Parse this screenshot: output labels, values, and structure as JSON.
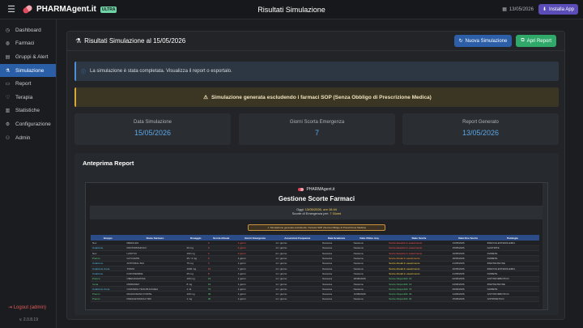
{
  "topbar": {
    "brand": "PHARMAgent.it",
    "badge": "ULTRA",
    "title": "Risultati Simulazione",
    "date": "13/05/2026",
    "install_label": "Installa App"
  },
  "sidebar": {
    "items": [
      {
        "label": "Dashboard",
        "icon": "dashboard-icon",
        "glyph": "◷"
      },
      {
        "label": "Farmaci",
        "icon": "pill-icon",
        "glyph": "◍"
      },
      {
        "label": "Gruppi & Alert",
        "icon": "group-icon",
        "glyph": "▤"
      },
      {
        "label": "Simulazione",
        "icon": "flask-icon",
        "glyph": "⚗"
      },
      {
        "label": "Report",
        "icon": "document-icon",
        "glyph": "▭"
      },
      {
        "label": "Terapia",
        "icon": "heart-icon",
        "glyph": "♡"
      },
      {
        "label": "Statistiche",
        "icon": "chart-icon",
        "glyph": "▥"
      },
      {
        "label": "Configurazione",
        "icon": "gear-icon",
        "glyph": "⚙"
      },
      {
        "label": "Admin",
        "icon": "user-icon",
        "glyph": "⚇"
      }
    ],
    "active_index": 3,
    "logout": "Logout (admin)",
    "version": "v. 2.0.8.19"
  },
  "main": {
    "title": "Risultati Simulazione al 15/05/2026",
    "new_sim_label": "Nuova Simulazione",
    "open_report_label": "Apri Report",
    "info_alert": "La simulazione è stata completata. Visualizza il report o esportalo.",
    "warn_alert": "Simulazione generata escludendo i farmaci SOP (Senza Obbligo di Prescrizione Medica)",
    "stats": [
      {
        "label": "Data Simulazione",
        "value": "15/05/2026"
      },
      {
        "label": "Giorni Scorta Emergenza",
        "value": "7"
      },
      {
        "label": "Report Generato",
        "value": "13/05/2026"
      }
    ],
    "preview_title": "Anteprima Report"
  },
  "report": {
    "brand": "PHARMAgent.it",
    "title": "Gestione Scorte Farmaci",
    "today_label": "Oggi:",
    "today_value": "13/05/2026, ore 16:44",
    "emergency_label": "Scorte di Emergenza per:",
    "emergency_value": "7 Giorni",
    "warning": "Simulazione generata escludendo i farmaci SOP (Senza Obbligo di Prescrizione Medica)",
    "headers": [
      "Gruppo",
      "Nome Farmaco",
      "Dosaggio",
      "Scorta Attuale",
      "Giorni Emergenza",
      "Assunzioni Frequenza",
      "Data Scadenza",
      "Data Ultimo Acq.",
      "Stato Scorta",
      "Data Fine Scorta",
      "Patologia"
    ],
    "rows": [
      {
        "c": [
          "Nov",
          "MEDULES",
          "",
          "0",
          "1 giorni",
          "1x / giorno",
          "Nessuna",
          "Nessuna",
          "Scorte Esaurite In esaurimento",
          "13/05/2026",
          "IPERCOLESTEROLEMIA"
        ],
        "g": "",
        "s": "c-red"
      },
      {
        "c": [
          "Colazione",
          "PANTOPRAZOLO",
          "20 mg",
          "0",
          "2 giorni",
          "1x / giorno",
          "Nessuna",
          "Nessuna",
          "Scorte Esaurite In esaurimento",
          "15/05/2026",
          "GASTRITE"
        ],
        "g": "c-cyan",
        "s": "c-red"
      },
      {
        "c": [
          "Nov",
          "LASITUX",
          "100 mg",
          "3",
          "3 giorni",
          "2x / giorno",
          "Nessuna",
          "Nessuna",
          "Scorte Esaurite In esaurimento",
          "16/05/2026",
          "DIABETE"
        ],
        "g": "",
        "s": "c-red"
      },
      {
        "c": [
          "Pranzo",
          "GLYCAMIN",
          "25 / 3 mg",
          "0",
          "1 giorni",
          "1x / giorno",
          "Nessuna",
          "Nessuna",
          "Scorte Attuali In esaurimento",
          "18/05/2026",
          "DIABETE"
        ],
        "g": "c-green",
        "s": "c-orange"
      },
      {
        "c": [
          "Colazione",
          "ANTIVIRAL B12",
          "75 mg",
          "0",
          "1 giorni",
          "1x / giorno",
          "Nessuna",
          "Nessuna",
          "Scorte Attuali In esaurimento",
          "21/05/2026",
          "IPERTENSIONE"
        ],
        "g": "c-cyan",
        "s": "c-yellow"
      },
      {
        "c": [
          "Colazione Cena",
          "TOKIM",
          "1000 mg",
          "10",
          "7 giorni",
          "1x / giorno",
          "Nessuna",
          "Nessuna",
          "Scorte Attuali In esaurimento",
          "20/05/2026",
          "IPERCOLESTEROLEMIA"
        ],
        "g": "c-cyan",
        "s": "c-yellow"
      },
      {
        "c": [
          "Colazione",
          "FUROSEMIDE",
          "25 mg",
          "8",
          "1 giorni",
          "1x / giorno",
          "Nessuna",
          "Nessuna",
          "Scorte Attuali In esaurimento",
          "21/05/2026",
          "DIABETE"
        ],
        "g": "c-cyan",
        "s": "c-yellow"
      },
      {
        "c": [
          "Pranzo",
          "OMEGIDANTINA",
          "100 mg",
          "19",
          "1 giorni",
          "1x / giorno",
          "Nessuna",
          "28/06/2026",
          "Scorte Disponibili: 19",
          "02/06/2026",
          "ANTITROMBOTICO"
        ],
        "g": "c-green",
        "s": "c-green"
      },
      {
        "c": [
          "Cena",
          "MIDRANEX",
          "8 mg",
          "19",
          "1 giorni",
          "1x / giorno",
          "Nessuna",
          "Nessuna",
          "Scorte Disponibili: 19",
          "04/06/2026",
          "IPERTENSIONE"
        ],
        "g": "c-green",
        "s": "c-green"
      },
      {
        "c": [
          "Colazione Cena",
          "CARVEDIL TEVA BIJUCHEA",
          "1 ml",
          "79",
          "1 giorni",
          "1x / giorno",
          "Nessuna",
          "Nessuna",
          "Scorte Disponibili: 79",
          "09/06/2026",
          "DIABETE"
        ],
        "g": "c-cyan",
        "s": "c-green"
      },
      {
        "c": [
          "Pranzo",
          "MAGNONANO FORTE",
          "100 mg",
          "39",
          "1 giorni",
          "1x / giorno",
          "Nessuna",
          "12/09/2026",
          "Scorte Disponibili: 39",
          "14/06/2026",
          "ANTITROMBOTICO"
        ],
        "g": "c-green",
        "s": "c-green"
      },
      {
        "c": [
          "Pranzo",
          "PARACETAMOLO 500",
          "1 mg",
          "30",
          "1 giorni",
          "1x / giorno",
          "Nessuna",
          "Nessuna",
          "Scorte Disponibili: 30",
          "15/06/2026",
          "ANTIPIRETICO"
        ],
        "g": "c-green",
        "s": "c-green"
      }
    ]
  }
}
